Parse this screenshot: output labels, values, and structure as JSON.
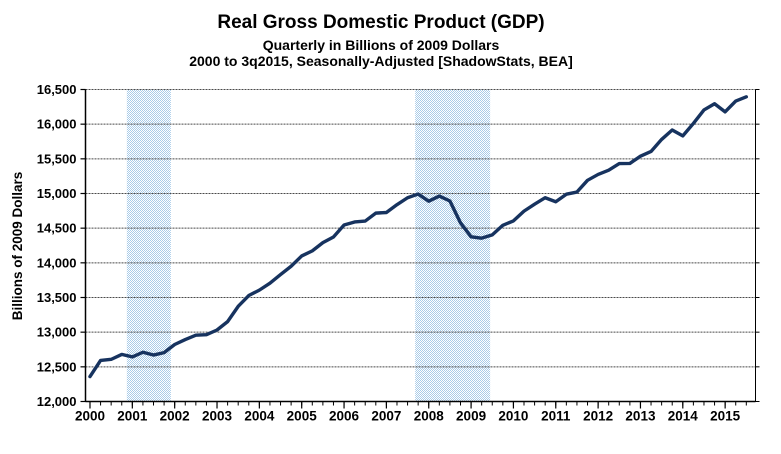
{
  "chart_data": {
    "type": "line",
    "title": "Real Gross Domestic Product (GDP)",
    "subtitle": "Quarterly in Billions of 2009 Dollars",
    "caption": "2000 to 3q2015, Seasonally-Adjusted [ShadowStats, BEA]",
    "xlabel": "",
    "ylabel": "Billions of 2009 Dollars",
    "legend": "none",
    "grid": "horizontal-dotted",
    "ylim": [
      12000,
      16500
    ],
    "ytick_step": 500,
    "ytick_values": [
      16500,
      16000,
      15500,
      15000,
      14500,
      14000,
      13500,
      13000,
      12500,
      12000
    ],
    "ytick_labels": [
      "16,500",
      "16,000",
      "15,500",
      "15,000",
      "14,500",
      "14,000",
      "13,500",
      "13,000",
      "12,500",
      "12,000"
    ],
    "xlim": [
      1999.894,
      2015.717
    ],
    "xticks": [
      2000,
      2001,
      2002,
      2003,
      2004,
      2005,
      2006,
      2007,
      2008,
      2009,
      2010,
      2011,
      2012,
      2013,
      2014,
      2015
    ],
    "xtick_minor_step": 0.25,
    "colors": {
      "line": "#17335f",
      "recession_band": "#a9cbe8",
      "grid": "#4a4a4a",
      "axis": "#000000",
      "text": "#000000",
      "background": "#ffffff"
    },
    "recession_bands": [
      {
        "label": "2001 recession",
        "from": 2000.87,
        "to": 2001.91
      },
      {
        "label": "2007-2009 recession",
        "from": 2007.68,
        "to": 2009.45
      }
    ],
    "series": [
      {
        "name": "Real GDP",
        "unit": "billions of 2009 dollars",
        "frequency": "quarterly",
        "start": "2000Q1",
        "end": "2015Q3",
        "x_start": 2000.0,
        "x_step": 0.25,
        "values": [
          12359.1,
          12592.5,
          12607.7,
          12679.3,
          12643.3,
          12710.3,
          12670.1,
          12705.3,
          12822.3,
          12893.0,
          12955.8,
          12964.0,
          13031.2,
          13152.1,
          13372.4,
          13528.7,
          13606.5,
          13706.2,
          13830.8,
          13950.4,
          14099.1,
          14172.7,
          14291.8,
          14373.4,
          14546.1,
          14589.6,
          14602.6,
          14716.9,
          14726.0,
          14838.7,
          14938.5,
          14991.8,
          14889.5,
          14963.4,
          14891.6,
          14577.0,
          14375.0,
          14355.6,
          14402.5,
          14541.9,
          14604.8,
          14745.9,
          14845.5,
          14939.0,
          14881.3,
          14989.6,
          15021.1,
          15190.3,
          15275.0,
          15336.7,
          15431.3,
          15433.7,
          15538.4,
          15606.6,
          15779.9,
          15916.2,
          15831.7,
          16010.4,
          16205.6,
          16294.7,
          16177.3,
          16333.6,
          16394.2
        ]
      }
    ]
  }
}
